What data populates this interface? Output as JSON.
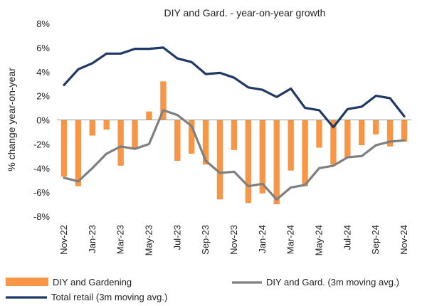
{
  "chart_data": {
    "type": "bar",
    "title": "DIY and Gard. - year-on-year  growth",
    "ylabel": "% change year-on-year",
    "xlabel": "",
    "ylim": [
      -8,
      8
    ],
    "yticks": [
      8,
      6,
      4,
      2,
      0,
      -2,
      -4,
      -6,
      -8
    ],
    "ytick_labels": [
      "8%",
      "6%",
      "4%",
      "2%",
      "0%",
      "-2%",
      "-4%",
      "-6%",
      "-8%"
    ],
    "categories": [
      "Nov-22",
      "Dec-22",
      "Jan-23",
      "Feb-23",
      "Mar-23",
      "Apr-23",
      "May-23",
      "Jun-23",
      "Jul-23",
      "Aug-23",
      "Sep-23",
      "Oct-23",
      "Nov-23",
      "Dec-23",
      "Jan-24",
      "Feb-24",
      "Mar-24",
      "Apr-24",
      "May-24",
      "Jun-24",
      "Jul-24",
      "Aug-24",
      "Sep-24",
      "Oct-24",
      "Nov-24"
    ],
    "shown_tick_labels": [
      "Nov-22",
      "Jan-23",
      "Mar-23",
      "May-23",
      "Jul-23",
      "Sep-23",
      "Nov-23",
      "Jan-24",
      "Mar-24",
      "May-24",
      "Jul-24",
      "Sep-24",
      "Nov-24"
    ],
    "legend_position": "bottom",
    "grid": false,
    "series": [
      {
        "name": "DIY and Gardening",
        "type": "bar",
        "color": "#f79646",
        "values": [
          -4.7,
          -5.5,
          -1.3,
          -0.8,
          -3.8,
          -2.4,
          0.7,
          3.2,
          -3.4,
          -2.8,
          -3.7,
          -6.6,
          -2.5,
          -6.9,
          -6.1,
          -7.0,
          -4.2,
          -5.5,
          -2.3,
          -3.7,
          -3.1,
          -2.1,
          -1.2,
          -2.2,
          -1.8
        ]
      },
      {
        "name": "DIY and Gard. (3m moving avg.)",
        "type": "line",
        "color": "#7f7f7f",
        "values": [
          -4.8,
          -5.1,
          -4.0,
          -2.8,
          -2.2,
          -2.4,
          -2.0,
          0.8,
          0.4,
          -0.5,
          -3.4,
          -4.4,
          -4.3,
          -5.5,
          -5.3,
          -6.6,
          -5.6,
          -5.4,
          -4.0,
          -3.8,
          -3.1,
          -3.0,
          -2.1,
          -1.8,
          -1.7
        ]
      },
      {
        "name": "Total retail (3m moving avg.)",
        "type": "line",
        "color": "#1f3864",
        "values": [
          2.9,
          4.2,
          4.7,
          5.5,
          5.5,
          5.9,
          5.9,
          6.0,
          5.1,
          4.8,
          3.8,
          3.9,
          3.5,
          2.7,
          2.5,
          1.9,
          2.6,
          1.0,
          0.8,
          -0.6,
          0.9,
          1.1,
          2.0,
          1.8,
          0.3
        ]
      }
    ]
  }
}
